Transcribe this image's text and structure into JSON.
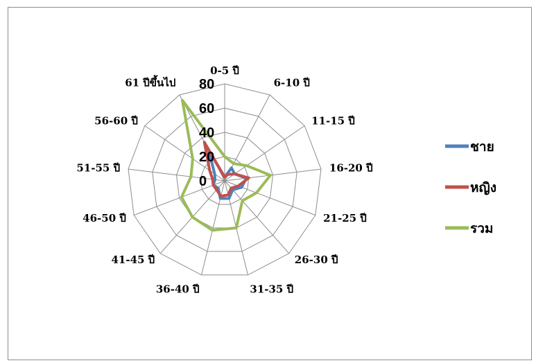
{
  "chart_data": {
    "type": "radar",
    "categories": [
      "0-5 ปี",
      "6-10 ปี",
      "11-15 ปี",
      "16-20 ปี",
      "21-25 ปี",
      "26-30 ปี",
      "31-35 ปี",
      "36-40 ปี",
      "41-45 ปี",
      "46-50 ปี",
      "51-55 ปี",
      "56-60 ปี",
      "61 ปีขึ้นไป"
    ],
    "ticks": [
      "0",
      "20",
      "40",
      "60",
      "80"
    ],
    "rmax": 80,
    "series": [
      {
        "name": "ชาย",
        "color": "#4f81bd",
        "values": [
          3,
          12,
          10,
          18,
          15,
          10,
          15,
          15,
          8,
          10,
          8,
          10,
          28
        ]
      },
      {
        "name": "หญิง",
        "color": "#c0504d",
        "values": [
          3,
          6,
          10,
          20,
          12,
          8,
          12,
          13,
          10,
          10,
          10,
          15,
          36
        ]
      },
      {
        "name": "รวม",
        "color": "#9bbb59",
        "values": [
          20,
          16,
          22,
          38,
          28,
          22,
          40,
          42,
          40,
          38,
          28,
          32,
          75
        ]
      }
    ],
    "legend_position": "right",
    "grid": true
  }
}
